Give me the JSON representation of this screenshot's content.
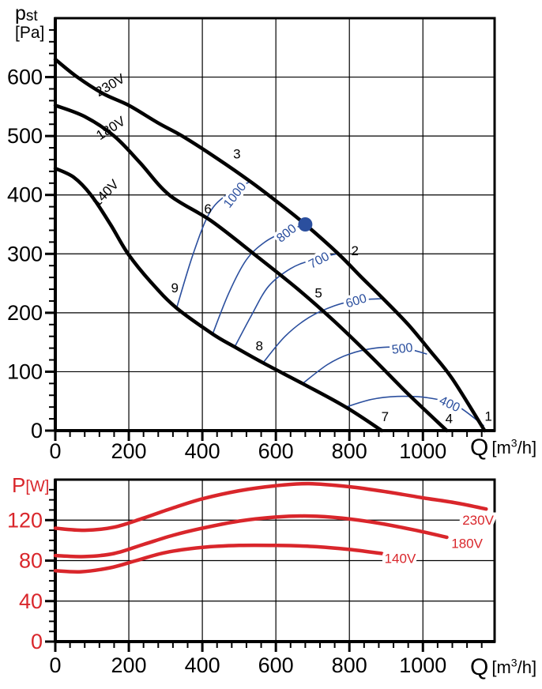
{
  "colors": {
    "black": "#000000",
    "blue": "#2b4f9e",
    "red": "#d9262b",
    "grid": "#000000",
    "background": "#ffffff"
  },
  "labels": {
    "pressure_y_main": "p",
    "pressure_y_sub": "st",
    "pressure_y_unit": "[Pa]",
    "power_y_main": "P",
    "power_y_unit": "[W]",
    "x_main": "Q",
    "x_unit_pre": "[m",
    "x_unit_sup": "3",
    "x_unit_post": "/h]"
  },
  "chart_data": [
    {
      "type": "line",
      "id": "pressure",
      "title": "Static pressure vs flow",
      "xlabel": "Q [m3/h]",
      "ylabel": "pst [Pa]",
      "xlim": [
        0,
        1195
      ],
      "ylim": [
        0,
        700
      ],
      "xticks": [
        0,
        200,
        400,
        600,
        800,
        1000
      ],
      "yticks": [
        0,
        100,
        200,
        300,
        400,
        500,
        600
      ],
      "x_minor_step": 40,
      "y_minor_step": 20,
      "grid": true,
      "series": [
        {
          "name": "230V",
          "color": "#000000",
          "width": 4.5,
          "points": [
            [
              0,
              630
            ],
            [
              60,
              600
            ],
            [
              130,
              572
            ],
            [
              200,
              552
            ],
            [
              280,
              522
            ],
            [
              345,
              500
            ],
            [
              440,
              462
            ],
            [
              530,
              423
            ],
            [
              600,
              390
            ],
            [
              680,
              350
            ],
            [
              770,
              300
            ],
            [
              830,
              262
            ],
            [
              890,
              225
            ],
            [
              960,
              180
            ],
            [
              1020,
              135
            ],
            [
              1080,
              88
            ],
            [
              1168,
              0
            ]
          ],
          "label": {
            "text": "230V",
            "x": 150,
            "y": 585,
            "angle": -30
          }
        },
        {
          "name": "180V",
          "color": "#000000",
          "width": 4.5,
          "points": [
            [
              0,
              552
            ],
            [
              80,
              533
            ],
            [
              160,
              500
            ],
            [
              230,
              455
            ],
            [
              310,
              400
            ],
            [
              424,
              356
            ],
            [
              550,
              295
            ],
            [
              660,
              240
            ],
            [
              760,
              185
            ],
            [
              860,
              125
            ],
            [
              960,
              62
            ],
            [
              1065,
              0
            ]
          ],
          "label": {
            "text": "180V",
            "x": 152,
            "y": 512,
            "angle": -33
          }
        },
        {
          "name": "140V",
          "color": "#000000",
          "width": 4.5,
          "points": [
            [
              0,
              445
            ],
            [
              50,
              430
            ],
            [
              97,
              400
            ],
            [
              150,
              350
            ],
            [
              198,
              300
            ],
            [
              260,
              252
            ],
            [
              330,
              208
            ],
            [
              428,
              164
            ],
            [
              488,
              142
            ],
            [
              565,
              115
            ],
            [
              672,
              80
            ],
            [
              790,
              40
            ],
            [
              888,
              0
            ]
          ],
          "label": {
            "text": "140V",
            "x": 138,
            "y": 402,
            "angle": -46
          }
        }
      ],
      "rpm_curves": [
        {
          "rpm": "1000",
          "points": [
            [
              330,
              208
            ],
            [
              375,
              300
            ],
            [
              420,
              370
            ],
            [
              470,
              402
            ],
            [
              531,
              423
            ]
          ],
          "label": {
            "x": 490,
            "y": 399,
            "angle": -52
          }
        },
        {
          "rpm": "800",
          "points": [
            [
              428,
              164
            ],
            [
              473,
              235
            ],
            [
              520,
              290
            ],
            [
              570,
              320
            ],
            [
              625,
              338
            ],
            [
              680,
              350
            ]
          ],
          "label": {
            "x": 630,
            "y": 334,
            "angle": -38
          }
        },
        {
          "rpm": "700",
          "points": [
            [
              488,
              142
            ],
            [
              533,
              195
            ],
            [
              580,
              245
            ],
            [
              640,
              275
            ],
            [
              700,
              290
            ],
            [
              765,
              300
            ]
          ],
          "label": {
            "x": 718,
            "y": 288,
            "angle": -28
          }
        },
        {
          "rpm": "600",
          "points": [
            [
              565,
              115
            ],
            [
              625,
              160
            ],
            [
              690,
              192
            ],
            [
              760,
              212
            ],
            [
              820,
              221
            ],
            [
              888,
              224
            ]
          ],
          "label": {
            "x": 819,
            "y": 219,
            "angle": -17
          }
        },
        {
          "rpm": "500",
          "points": [
            [
              673,
              80
            ],
            [
              740,
              112
            ],
            [
              800,
              130
            ],
            [
              870,
              140
            ],
            [
              940,
              141
            ],
            [
              1011,
              130
            ]
          ],
          "label": {
            "x": 944,
            "y": 138,
            "angle": -7
          }
        },
        {
          "rpm": "400",
          "points": [
            [
              790,
              40
            ],
            [
              860,
              53
            ],
            [
              930,
              58
            ],
            [
              1010,
              56
            ],
            [
              1090,
              43
            ],
            [
              1166,
              8
            ]
          ],
          "label": {
            "x": 1072,
            "y": 44,
            "angle": 25
          }
        }
      ],
      "point_markers": [
        {
          "n": "1",
          "x": 1178,
          "y": 17
        },
        {
          "n": "2",
          "x": 815,
          "y": 298
        },
        {
          "n": "3",
          "x": 494,
          "y": 462
        },
        {
          "n": "4",
          "x": 1071,
          "y": 13
        },
        {
          "n": "5",
          "x": 716,
          "y": 226
        },
        {
          "n": "6",
          "x": 415,
          "y": 369
        },
        {
          "n": "7",
          "x": 897,
          "y": 16
        },
        {
          "n": "8",
          "x": 555,
          "y": 136
        },
        {
          "n": "9",
          "x": 325,
          "y": 235
        }
      ],
      "operating_point": {
        "x": 680,
        "y": 350,
        "radius": 9,
        "color": "#2b4f9e"
      }
    },
    {
      "type": "line",
      "id": "power",
      "title": "Power vs flow",
      "xlabel": "Q [m3/h]",
      "ylabel": "P [W]",
      "xlim": [
        0,
        1195
      ],
      "ylim": [
        0,
        160
      ],
      "xticks": [
        0,
        200,
        400,
        600,
        800,
        1000
      ],
      "yticks": [
        0,
        40,
        80,
        120
      ],
      "x_minor_step": 40,
      "y_minor_step": 10,
      "grid": true,
      "series": [
        {
          "name": "230V",
          "color": "#d9262b",
          "width": 4.5,
          "points": [
            [
              0,
              112
            ],
            [
              80,
              110
            ],
            [
              160,
              113
            ],
            [
              240,
              122
            ],
            [
              320,
              132
            ],
            [
              400,
              141
            ],
            [
              500,
              149
            ],
            [
              600,
              154
            ],
            [
              690,
              156
            ],
            [
              800,
              153
            ],
            [
              900,
              148
            ],
            [
              1000,
              142
            ],
            [
              1090,
              137
            ],
            [
              1172,
              131
            ]
          ],
          "label": {
            "text": "230V",
            "x": 1150,
            "y": 119,
            "angle": 0
          }
        },
        {
          "name": "180V",
          "color": "#d9262b",
          "width": 4.5,
          "points": [
            [
              0,
              85
            ],
            [
              80,
              84
            ],
            [
              160,
              87
            ],
            [
              240,
              96
            ],
            [
              320,
              105
            ],
            [
              400,
              112
            ],
            [
              500,
              119
            ],
            [
              600,
              123
            ],
            [
              690,
              124
            ],
            [
              780,
              122
            ],
            [
              880,
              117
            ],
            [
              980,
              110
            ],
            [
              1065,
              103
            ]
          ],
          "label": {
            "text": "180V",
            "x": 1120,
            "y": 96,
            "angle": 0
          }
        },
        {
          "name": "140V",
          "color": "#d9262b",
          "width": 4.5,
          "points": [
            [
              0,
              70
            ],
            [
              70,
              69
            ],
            [
              150,
              73
            ],
            [
              220,
              80
            ],
            [
              300,
              88
            ],
            [
              400,
              93
            ],
            [
              500,
              95
            ],
            [
              600,
              95
            ],
            [
              700,
              94
            ],
            [
              800,
              91
            ],
            [
              888,
              87
            ]
          ],
          "label": {
            "text": "140V",
            "x": 938,
            "y": 81,
            "angle": 0
          }
        }
      ]
    }
  ]
}
